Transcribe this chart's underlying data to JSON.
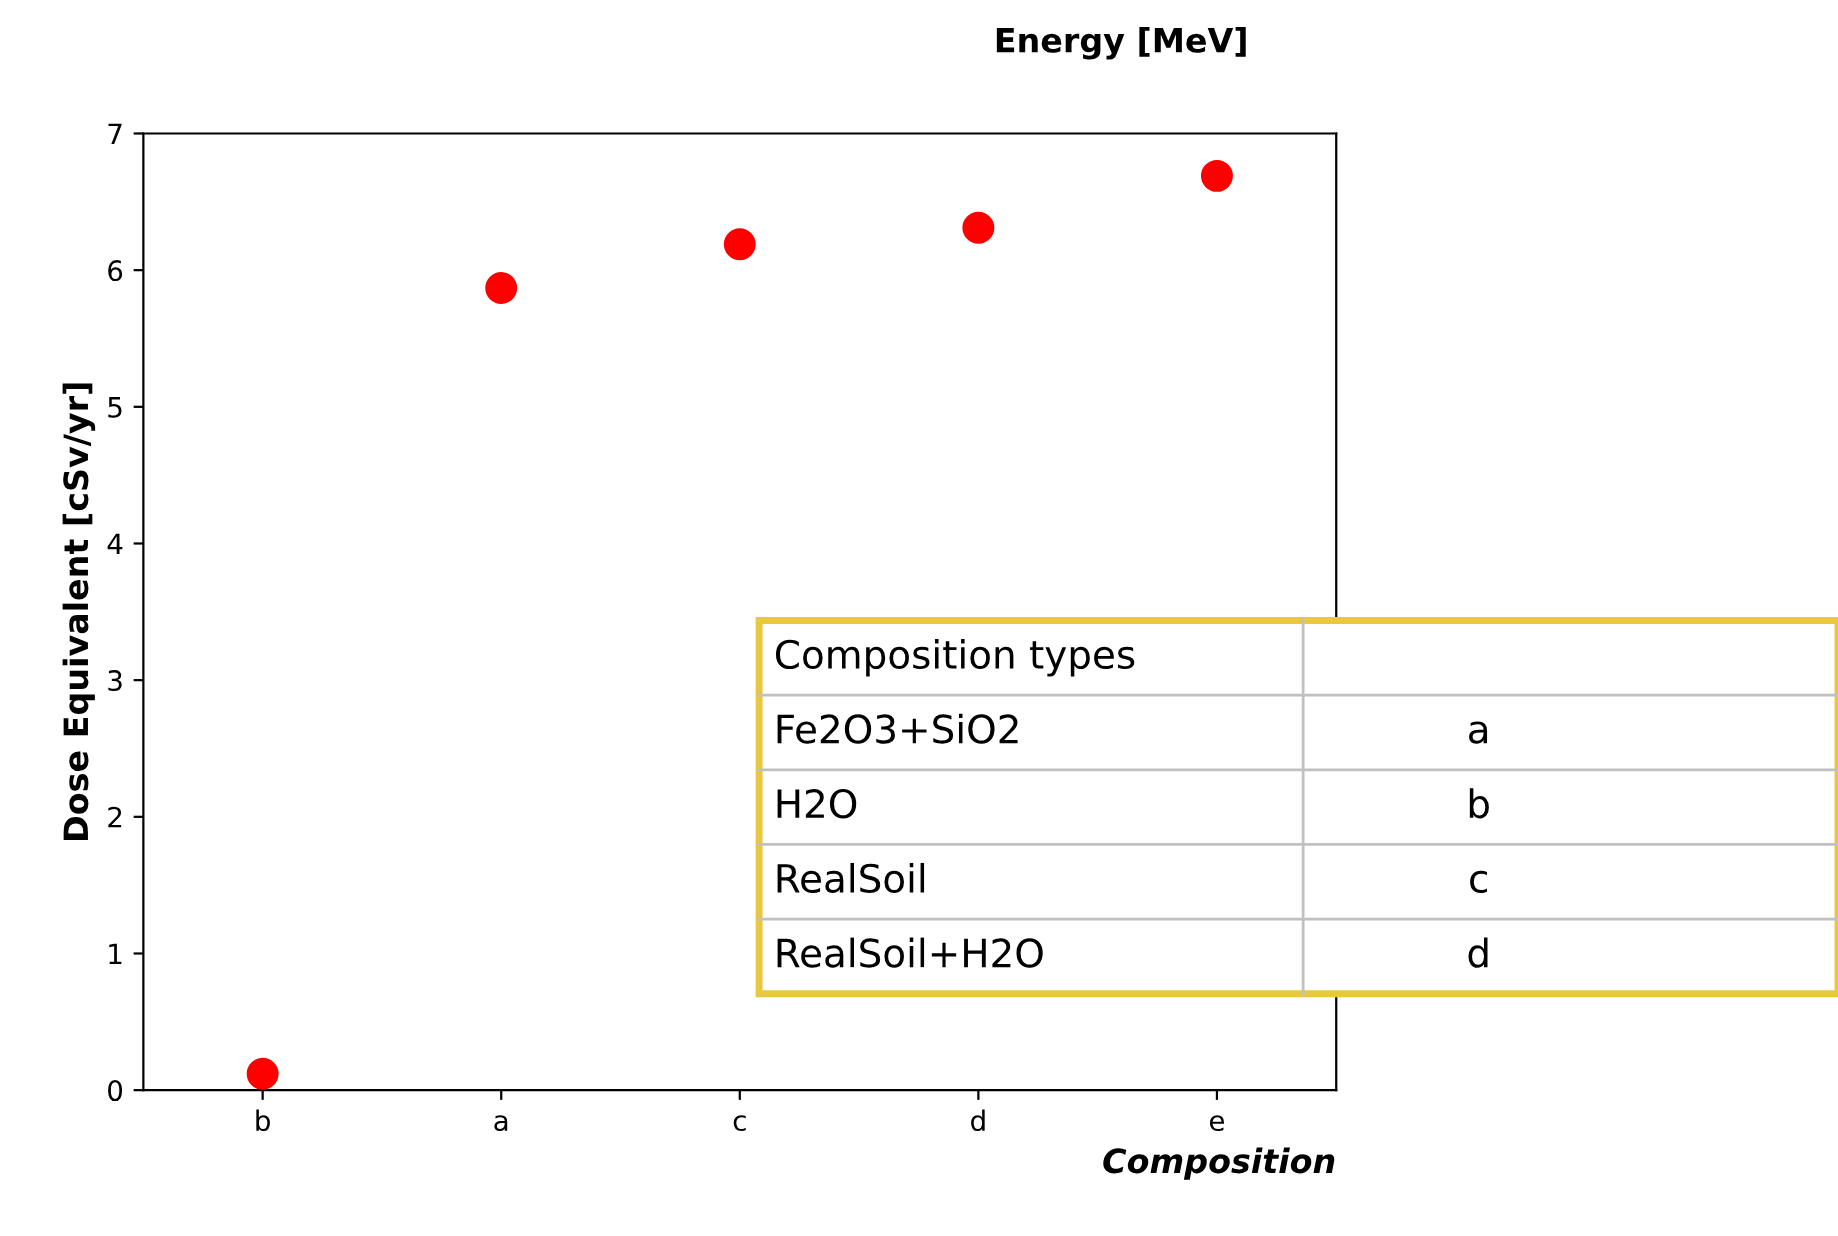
{
  "chart_data": {
    "type": "scatter",
    "title": "Energy [MeV]",
    "xlabel": "Composition",
    "ylabel": "Dose Equivalent [cSv/yr]",
    "categories": [
      "b",
      "a",
      "c",
      "d",
      "e"
    ],
    "series": [
      {
        "color": "#ff0000",
        "values": [
          0.12,
          5.87,
          6.19,
          6.31,
          6.69
        ]
      }
    ],
    "ylim": [
      0,
      7
    ],
    "yticks": [
      0,
      1,
      2,
      3,
      4,
      5,
      6,
      7
    ],
    "grid": false,
    "marker": "circle",
    "annotations": [
      "Composition types",
      "Fe2O3+SiO2",
      "a",
      "H2O",
      "b",
      "RealSoil",
      "c",
      "RealSoil+H2O",
      "d"
    ]
  }
}
